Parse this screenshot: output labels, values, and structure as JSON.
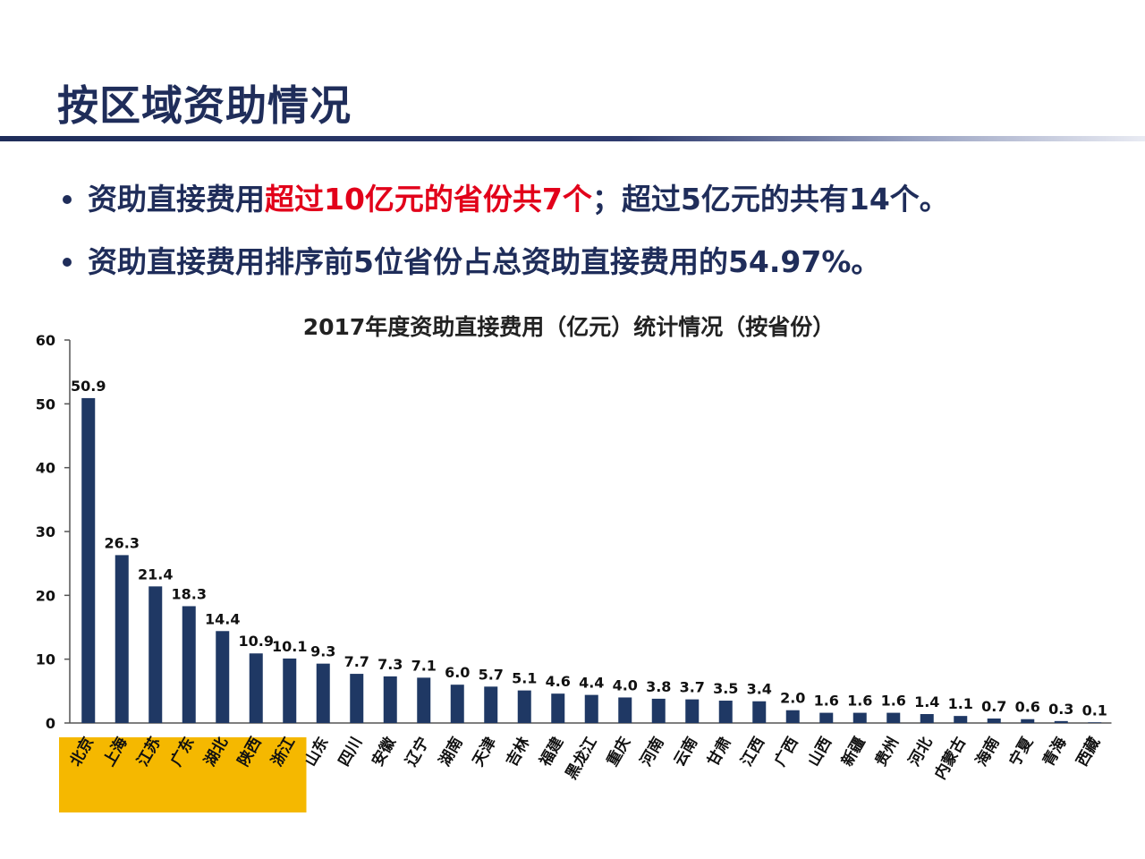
{
  "slide": {
    "title": "按区域资助情况",
    "bullets": [
      {
        "segments": [
          {
            "text": "资助直接费用",
            "highlight": false
          },
          {
            "text": "超过10亿元的省份共7个",
            "highlight": true
          },
          {
            "text": "；超过5亿元的共有14个。",
            "highlight": false
          }
        ]
      },
      {
        "segments": [
          {
            "text": "资助直接费用排序前5位省份占总资助直接费用的54.97%。",
            "highlight": false
          }
        ]
      }
    ]
  },
  "colors": {
    "title": "#1f2d5a",
    "bar": "#1f3864",
    "highlight_text": "#e2001a",
    "highlight_band": "#f5b800",
    "axis": "#555555"
  },
  "chart_data": {
    "type": "bar",
    "title": "2017年度资助直接费用（亿元）统计情况（按省份）",
    "xlabel": "",
    "ylabel": "",
    "ylim": [
      0,
      60
    ],
    "yticks": [
      0,
      10,
      20,
      30,
      40,
      50,
      60
    ],
    "grid": false,
    "highlighted_count": 7,
    "categories": [
      "北京",
      "上海",
      "江苏",
      "广东",
      "湖北",
      "陕西",
      "浙江",
      "山东",
      "四川",
      "安徽",
      "辽宁",
      "湖南",
      "天津",
      "吉林",
      "福建",
      "黑龙江",
      "重庆",
      "河南",
      "云南",
      "甘肃",
      "江西",
      "广西",
      "山西",
      "新疆",
      "贵州",
      "河北",
      "内蒙古",
      "海南",
      "宁夏",
      "青海",
      "西藏"
    ],
    "values": [
      50.9,
      26.3,
      21.4,
      18.3,
      14.4,
      10.9,
      10.1,
      9.3,
      7.7,
      7.3,
      7.1,
      6.0,
      5.7,
      5.1,
      4.6,
      4.4,
      4.0,
      3.8,
      3.7,
      3.5,
      3.4,
      2.0,
      1.6,
      1.6,
      1.6,
      1.4,
      1.1,
      0.7,
      0.6,
      0.3,
      0.1
    ],
    "value_labels": [
      "50.9",
      "26.3",
      "21.4",
      "18.3",
      "14.4",
      "10.9",
      "10.1",
      "9.3",
      "7.7",
      "7.3",
      "7.1",
      "6.0",
      "5.7",
      "5.1",
      "4.6",
      "4.4",
      "4.0",
      "3.8",
      "3.7",
      "3.5",
      "3.4",
      "2.0",
      "1.6",
      "1.6",
      "1.6",
      "1.4",
      "1.1",
      "0.7",
      "0.6",
      "0.3",
      "0.1"
    ]
  }
}
